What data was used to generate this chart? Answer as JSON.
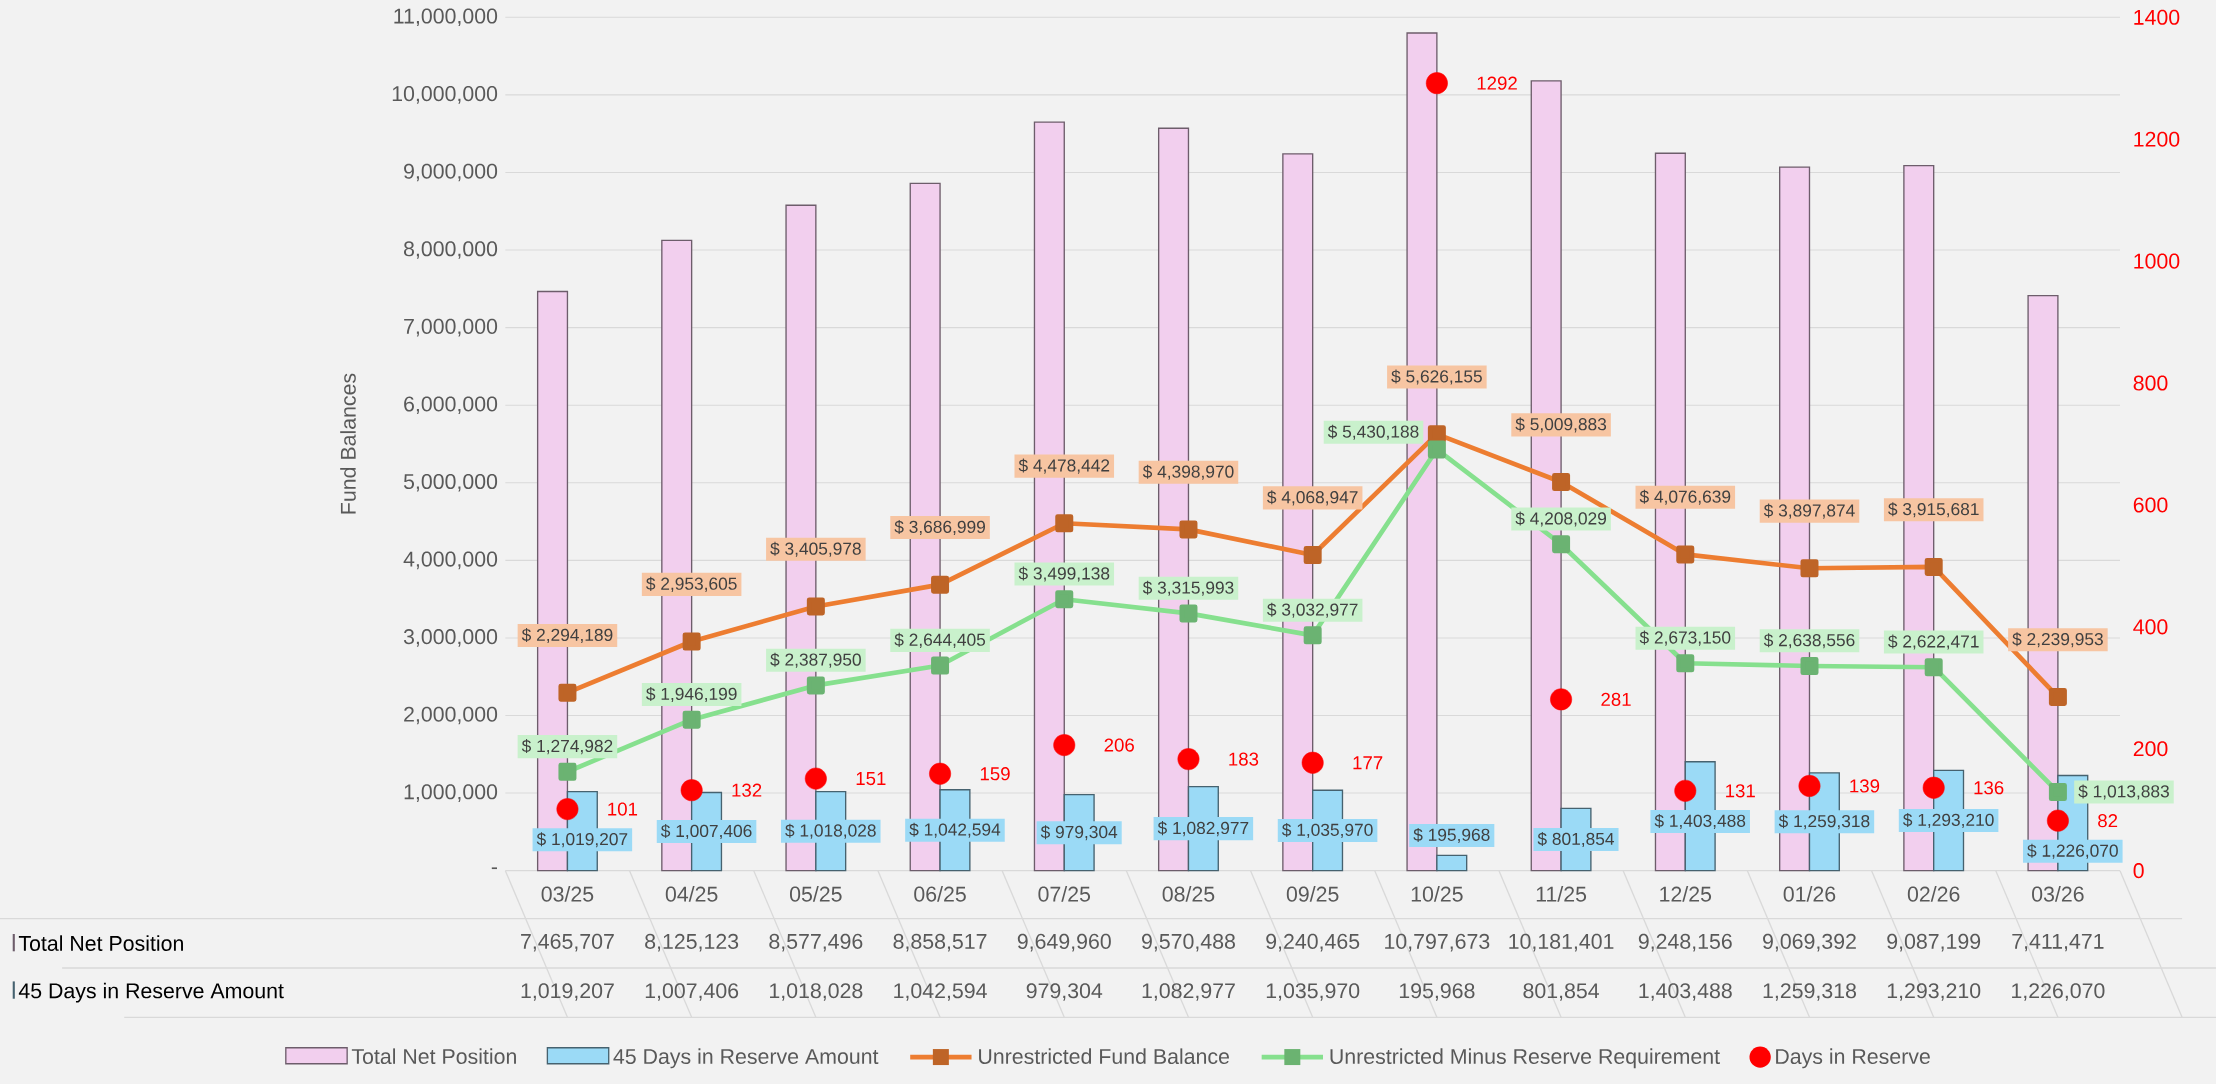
{
  "chart_data": {
    "type": "bar",
    "ylabel": "Fund Balances",
    "categories": [
      "03/25",
      "04/25",
      "05/25",
      "06/25",
      "07/25",
      "08/25",
      "09/25",
      "10/25",
      "11/25",
      "12/25",
      "01/26",
      "02/26",
      "03/26"
    ],
    "ylim": [
      0,
      11000000
    ],
    "yticks": [
      {
        "value": 0,
        "label": "-"
      },
      {
        "value": 1000000,
        "label": "1,000,000"
      },
      {
        "value": 2000000,
        "label": "2,000,000"
      },
      {
        "value": 3000000,
        "label": "3,000,000"
      },
      {
        "value": 4000000,
        "label": "4,000,000"
      },
      {
        "value": 5000000,
        "label": "5,000,000"
      },
      {
        "value": 6000000,
        "label": "6,000,000"
      },
      {
        "value": 7000000,
        "label": "7,000,000"
      },
      {
        "value": 8000000,
        "label": "8,000,000"
      },
      {
        "value": 9000000,
        "label": "9,000,000"
      },
      {
        "value": 10000000,
        "label": "10,000,000"
      },
      {
        "value": 11000000,
        "label": "11,000,000"
      }
    ],
    "y2lim": [
      0,
      1400
    ],
    "y2ticks": [
      0,
      200,
      400,
      600,
      800,
      1000,
      1200,
      1400
    ],
    "grid": "y",
    "legend": "bottom",
    "annotations": [
      "1,019,207",
      "1,007,406",
      "1,018,028",
      "1,042,594",
      "979,304",
      "1,082,977",
      "1,035,970",
      "195,968",
      "801,854",
      "1,403,488",
      "1,259,318",
      "1,293,210",
      "1,226,070"
    ],
    "series": [
      {
        "name": "Total Net Position",
        "color": "#f2cfee",
        "values": [
          7465707,
          8125123,
          8577496,
          8858517,
          9649960,
          9570488,
          9240465,
          10797673,
          10181401,
          9248156,
          9069392,
          9087199,
          7411471
        ],
        "value_labels": [
          "7,465,707",
          "8,125,123",
          "8,577,496",
          "8,858,517",
          "9,649,960",
          "9,570,488",
          "9,240,465",
          "10,797,673",
          "10,181,401",
          "9,248,156",
          "9,069,392",
          "9,087,199",
          "7,411,471"
        ]
      },
      {
        "name": "45 Days in Reserve Amount",
        "color": "#9bdaf6",
        "values": [
          1019207,
          1007406,
          1018028,
          1042594,
          979304,
          1082977,
          1035970,
          195968,
          801854,
          1403488,
          1259318,
          1293210,
          1226070
        ],
        "value_labels": [
          "$ 1,019,207",
          "$ 1,007,406",
          "$ 1,018,028",
          "$ 1,042,594",
          "$ 979,304",
          "$ 1,082,977",
          "$ 1,035,970",
          "$ 195,968",
          "$ 801,854",
          "$ 1,403,488",
          "$ 1,259,318",
          "$ 1,293,210",
          "$ 1,226,070"
        ]
      },
      {
        "name": "Unrestricted Fund Balance",
        "type": "line",
        "color": "#ed7d31",
        "marker": "square",
        "values": [
          2294189,
          2953605,
          3405978,
          3686999,
          4478442,
          4398970,
          4068947,
          5626155,
          5009883,
          4076639,
          3897874,
          3915681,
          2239953
        ],
        "value_labels": [
          "$ 2,294,189",
          "$ 2,953,605",
          "$ 3,405,978",
          "$ 3,686,999",
          "$ 4,478,442",
          "$ 4,398,970",
          "$ 4,068,947",
          "$ 5,626,155",
          "$ 5,009,883",
          "$ 4,076,639",
          "$ 3,897,874",
          "$ 3,915,681",
          "$ 2,239,953"
        ]
      },
      {
        "name": "Unrestricted Minus Reserve Requirement",
        "type": "line",
        "color": "#86e08e",
        "marker": "square",
        "values": [
          1274982,
          1946199,
          2387950,
          2644405,
          3499138,
          3315993,
          3032977,
          5430188,
          4208029,
          2673150,
          2638556,
          2622471,
          1013883
        ],
        "value_labels": [
          "$ 1,274,982",
          "$ 1,946,199",
          "$ 2,387,950",
          "$ 2,644,405",
          "$ 3,499,138",
          "$ 3,315,993",
          "$ 3,032,977",
          "$ 5,430,188",
          "$ 4,208,029",
          "$ 2,673,150",
          "$ 2,638,556",
          "$ 2,622,471",
          "$ 1,013,883"
        ]
      },
      {
        "name": "Days in Reserve",
        "type": "scatter",
        "axis": "y2",
        "color": "#ff0000",
        "marker": "circle",
        "values": [
          101,
          132,
          151,
          159,
          206,
          183,
          177,
          1292,
          281,
          131,
          139,
          136,
          82
        ],
        "value_labels": [
          "101",
          "132",
          "151",
          "159",
          "206",
          "183",
          "177",
          "1292",
          "281",
          "131",
          "139",
          "136",
          "82"
        ]
      }
    ]
  }
}
